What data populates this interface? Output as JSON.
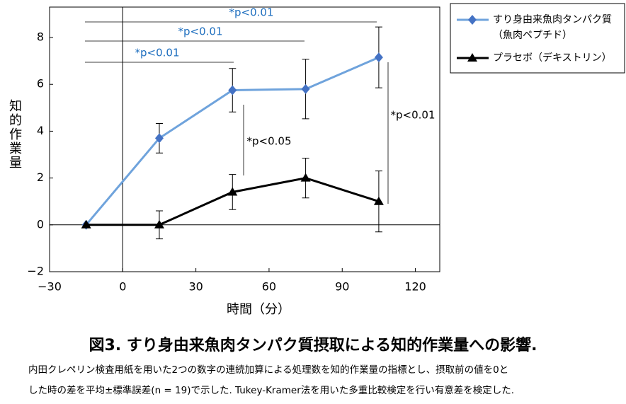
{
  "chart_data": {
    "type": "line",
    "y_label": "知的作業量",
    "x_label": "時間（分）",
    "xlim": [
      -30,
      130
    ],
    "xticks": [
      -30,
      0,
      30,
      60,
      90,
      120
    ],
    "ylim": [
      -2,
      9.3
    ],
    "yticks": [
      {
        "value": -2,
        "label": "−2"
      },
      0,
      2,
      4,
      6,
      8
    ],
    "x": [
      -15,
      15,
      45,
      75,
      105
    ],
    "series": [
      {
        "name": "すり身由来魚肉タンパク質\n（魚肉ペプチド）",
        "color": "#6fa3dc",
        "marker_color": "#4472c4",
        "marker": "diamond",
        "values": [
          0,
          3.7,
          5.75,
          5.8,
          7.15
        ],
        "errors": [
          null,
          0.63,
          0.93,
          1.27,
          1.3
        ]
      },
      {
        "name": "プラセボ（デキストリン）",
        "color": "#000000",
        "marker_color": "#000000",
        "marker": "triangle",
        "values": [
          0,
          0,
          1.4,
          2.0,
          1.0
        ],
        "errors": [
          null,
          0.6,
          0.75,
          0.85,
          1.3
        ]
      }
    ],
    "annotations": [
      {
        "text": "*p<0.01",
        "color": "#1f6fbf"
      },
      {
        "text": "*p<0.01",
        "color": "#1f6fbf"
      },
      {
        "text": "*p<0.01",
        "color": "#1f6fbf"
      },
      {
        "text": "*p<0.05",
        "color": "#000000"
      },
      {
        "text": "*p<0.01",
        "color": "#000000"
      }
    ]
  },
  "caption": {
    "title": "図3. すり身由来魚肉タンパク質摂取による知的作業量への影響.",
    "lines": [
      "内田クレペリン検査用紙を用いた2つの数字の連続加算による処理数を知的作業量の指標とし、摂取前の値を0と",
      "した時の差を平均±標準誤差(n = 19)で示した. Tukey-Kramer法を用いた多重比較検定を行い有意差を検定した."
    ]
  }
}
